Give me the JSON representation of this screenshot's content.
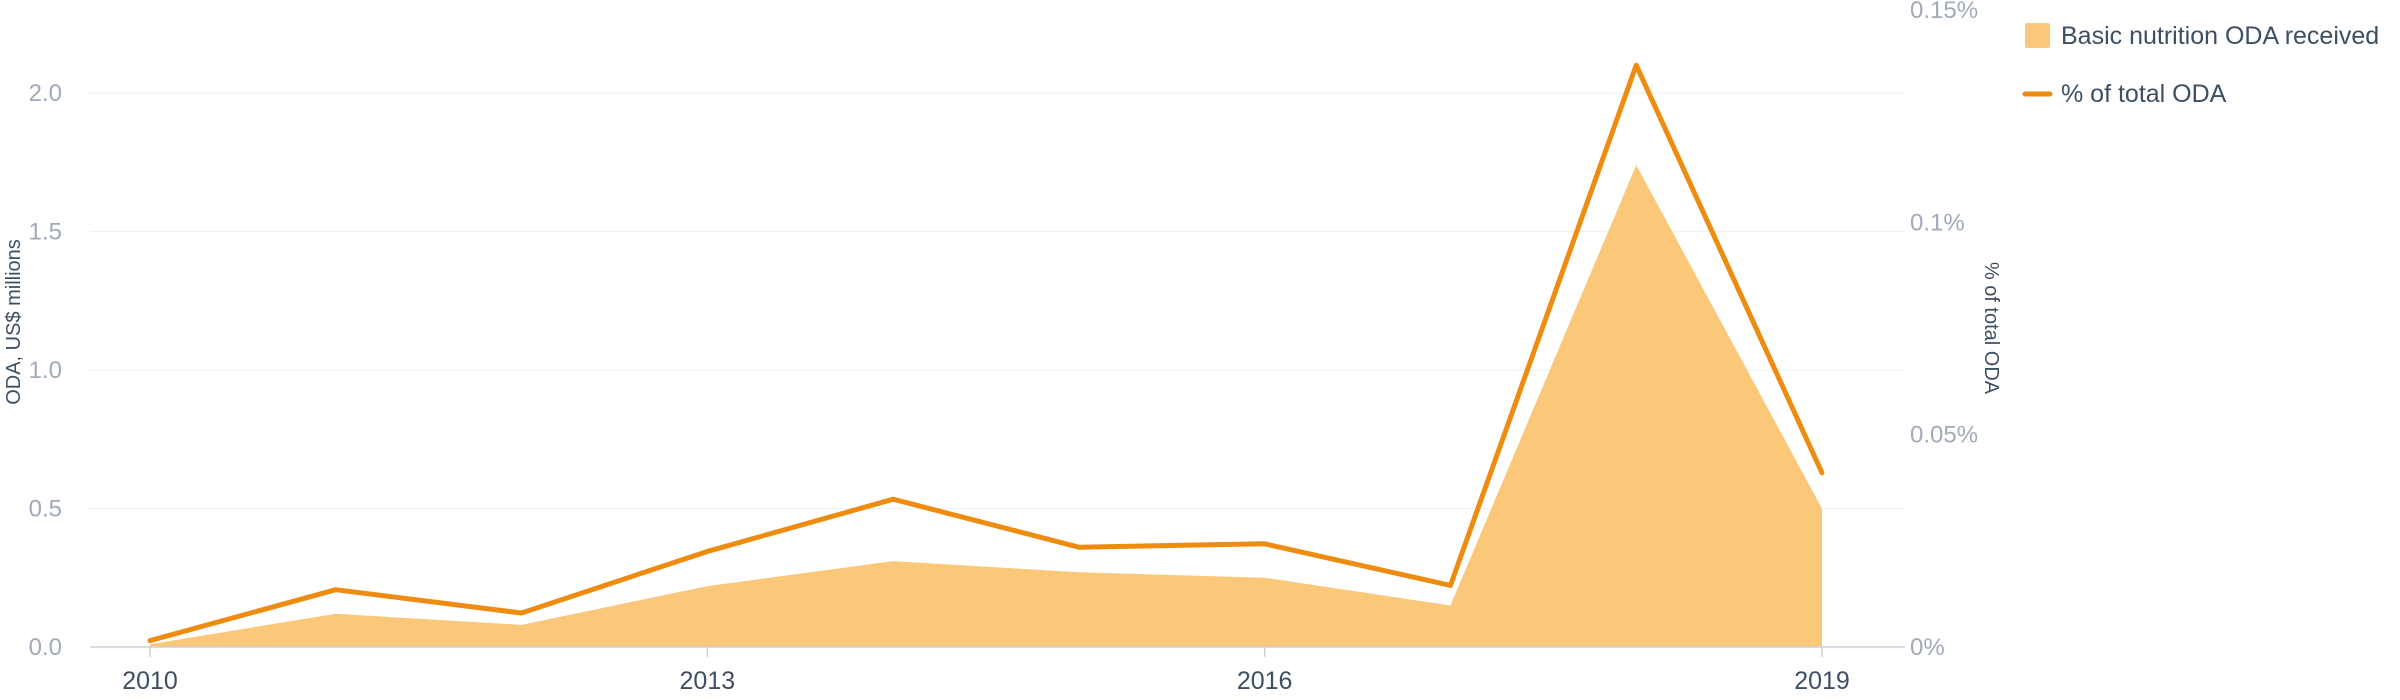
{
  "chart_data": {
    "type": "area",
    "x": [
      2010,
      2011,
      2012,
      2013,
      2014,
      2015,
      2016,
      2017,
      2018,
      2019
    ],
    "x_tick_labels": [
      "2010",
      "2013",
      "2016",
      "2019"
    ],
    "x_tick_values": [
      2010,
      2013,
      2016,
      2019
    ],
    "ylabel": "ODA, US$ millions",
    "ylim": [
      0,
      2.3
    ],
    "y_ticks": [
      0,
      0.5,
      1.0,
      1.5,
      2.0
    ],
    "y_tick_labels": [
      "0.0",
      "0.5",
      "1.0",
      "1.5",
      "2.0"
    ],
    "y2label": "% of total ODA",
    "y2lim": [
      0,
      0.15
    ],
    "y2_ticks": [
      0,
      0.05,
      0.1,
      0.15
    ],
    "y2_tick_labels": [
      "0%",
      "0.05%",
      "0.1%",
      "0.15%"
    ],
    "series": [
      {
        "name": "Basic nutrition ODA received",
        "type": "area",
        "axis": "left",
        "color": "#fbc87a",
        "values": [
          0.01,
          0.12,
          0.08,
          0.22,
          0.31,
          0.27,
          0.25,
          0.15,
          1.74,
          0.5
        ]
      },
      {
        "name": "% of total ODA",
        "type": "line",
        "axis": "right",
        "color": "#ee8c10",
        "values": [
          0.0015,
          0.0135,
          0.008,
          0.0225,
          0.0348,
          0.0235,
          0.0243,
          0.0145,
          0.137,
          0.041
        ]
      }
    ],
    "grid": true,
    "legend_position": "top-right"
  }
}
